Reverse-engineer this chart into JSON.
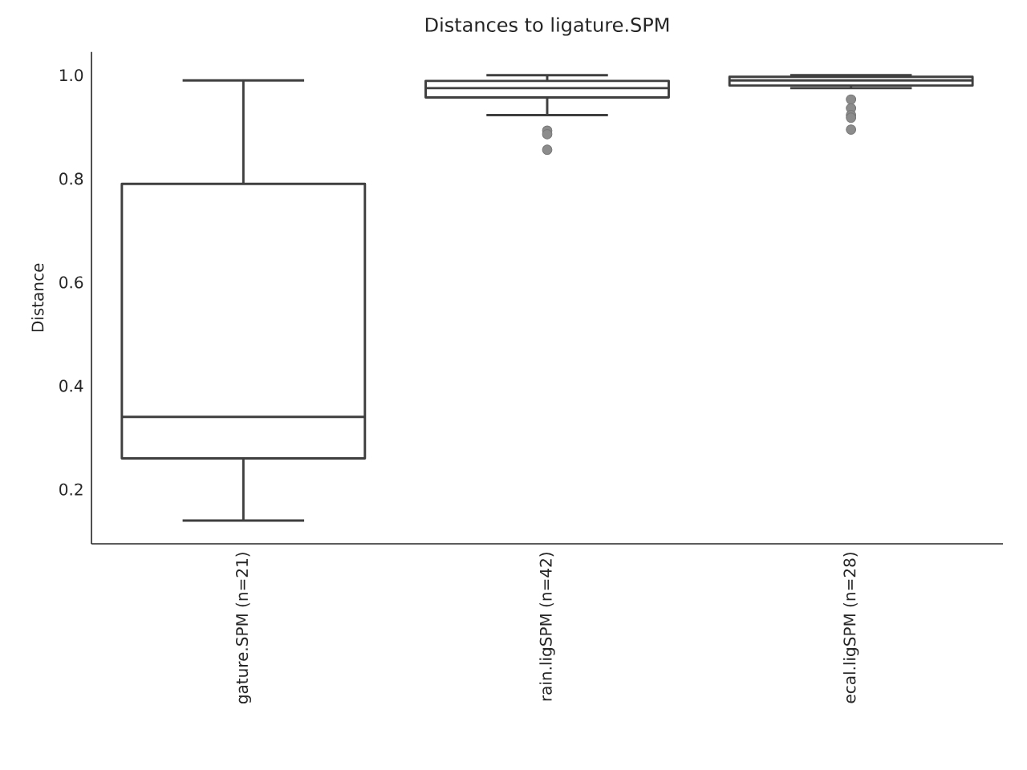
{
  "chart_data": {
    "type": "box",
    "title": "Distances to ligature.SPM",
    "ylabel": "Distance",
    "categories": [
      "gature.SPM (n=21)",
      "rain.ligSPM (n=42)",
      "ecal.ligSPM (n=28)"
    ],
    "series": [
      {
        "color": "#3f3f3f",
        "boxes": [
          {
            "low": 0.14,
            "q1": 0.26,
            "median": 0.34,
            "q3": 0.79,
            "high": 0.99
          },
          {
            "low": 0.923,
            "q1": 0.957,
            "median": 0.975,
            "q3": 0.989,
            "high": 1.0,
            "outliers": [
              0.893,
              0.886,
              0.856
            ]
          },
          {
            "low": 0.975,
            "q1": 0.98,
            "median": 0.99,
            "q3": 0.997,
            "high": 1.0,
            "outliers": [
              0.953,
              0.936,
              0.923,
              0.918,
              0.895
            ]
          }
        ]
      }
    ],
    "ylim": [
      0.095,
      1.045
    ],
    "yticks": [
      0.2,
      0.4,
      0.6,
      0.8,
      {
        "value": 1.0,
        "label": "1.0"
      }
    ],
    "grid": false
  }
}
